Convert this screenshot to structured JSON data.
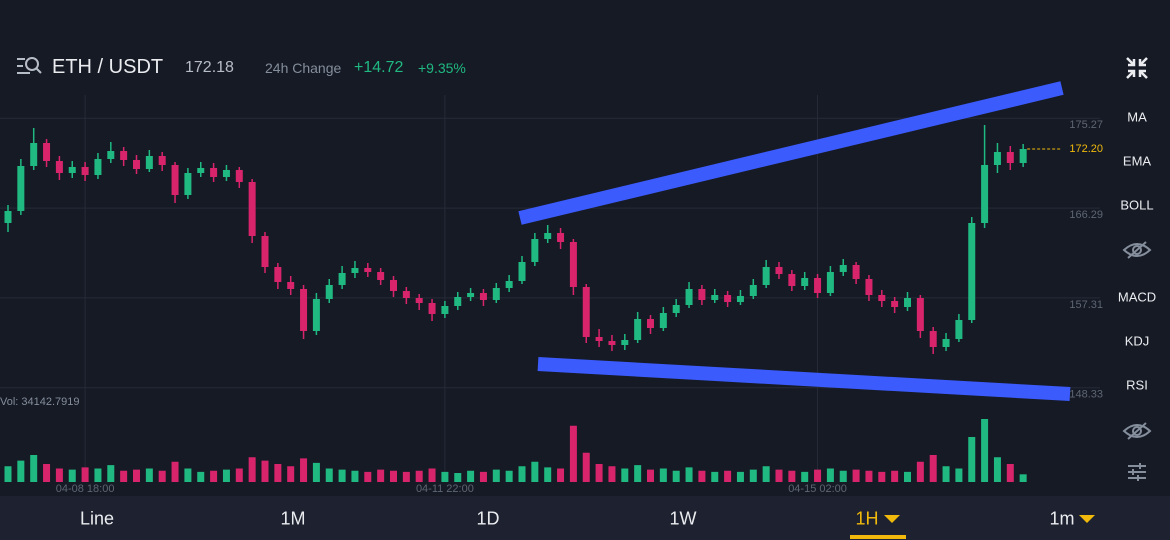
{
  "header": {
    "pair": "ETH / USDT",
    "price": "172.18",
    "change_label": "24h Change",
    "change": "+14.72",
    "change_pct": "+9.35%"
  },
  "toolbar": [
    "MA",
    "EMA",
    "BOLL",
    "MACD",
    "KDJ",
    "RSI"
  ],
  "tabs": [
    "Line",
    "1M",
    "1D",
    "1W",
    "1H",
    "1m"
  ],
  "volume_label": "Vol: 34142.7919",
  "chart_data": {
    "type": "candlestick",
    "ylim": [
      147.6,
      177.6
    ],
    "yticks": [
      175.27,
      166.29,
      157.31,
      148.33
    ],
    "xticks": [
      {
        "value": 6,
        "label": "04-08 18:00"
      },
      {
        "value": 34,
        "label": "04-11 22:00"
      },
      {
        "value": 63,
        "label": "04-15 02:00"
      }
    ],
    "grid": true,
    "up_color": "#1fb981",
    "down_color": "#d8246b",
    "last_price": {
      "value": 172.2,
      "label": "172.20"
    },
    "last_price_color": "#f0b90b",
    "vlim": [
      0,
      400000
    ],
    "open": [
      164.8,
      166.0,
      170.5,
      172.8,
      171.0,
      169.8,
      170.4,
      169.6,
      171.2,
      172.0,
      171.1,
      170.2,
      171.5,
      170.6,
      167.6,
      169.8,
      170.3,
      169.4,
      170.1,
      168.9,
      163.5,
      160.4,
      158.9,
      158.2,
      154.0,
      157.2,
      158.6,
      159.8,
      160.3,
      159.9,
      159.1,
      158.0,
      157.3,
      156.8,
      155.7,
      156.5,
      157.4,
      157.8,
      157.1,
      158.3,
      159.0,
      160.9,
      163.2,
      163.8,
      162.9,
      158.4,
      153.4,
      153.0,
      152.6,
      153.1,
      155.2,
      154.3,
      155.8,
      156.6,
      158.2,
      157.1,
      157.6,
      156.9,
      157.5,
      158.6,
      160.4,
      159.7,
      158.5,
      159.3,
      157.8,
      159.9,
      160.6,
      159.2,
      157.6,
      157.0,
      156.4,
      157.3,
      154.0,
      152.4,
      153.2,
      155.1,
      164.8,
      170.6,
      171.9,
      170.8
    ],
    "high": [
      166.6,
      171.2,
      174.3,
      173.2,
      171.5,
      171.0,
      170.9,
      171.8,
      172.9,
      172.4,
      171.6,
      172.1,
      171.9,
      170.9,
      170.3,
      170.9,
      170.8,
      170.6,
      170.4,
      169.2,
      163.9,
      160.8,
      159.5,
      158.6,
      157.8,
      159.2,
      160.5,
      161.0,
      160.8,
      160.3,
      159.5,
      158.4,
      157.7,
      157.2,
      157.0,
      157.9,
      158.3,
      158.2,
      158.8,
      159.6,
      161.5,
      163.8,
      164.6,
      164.3,
      163.2,
      158.7,
      154.2,
      153.6,
      153.7,
      155.9,
      155.6,
      156.4,
      157.2,
      158.9,
      158.6,
      158.2,
      158.0,
      158.1,
      159.2,
      161.1,
      160.9,
      160.1,
      159.9,
      159.7,
      160.5,
      161.2,
      160.9,
      159.6,
      158.1,
      157.4,
      157.9,
      157.6,
      154.4,
      153.8,
      155.7,
      165.4,
      174.6,
      172.8,
      172.5,
      172.7
    ],
    "low": [
      163.9,
      165.6,
      170.1,
      170.4,
      169.1,
      169.3,
      169.0,
      169.2,
      170.8,
      170.5,
      169.7,
      169.9,
      170.0,
      166.8,
      167.2,
      169.4,
      168.9,
      169.0,
      168.3,
      162.8,
      159.8,
      158.2,
      157.6,
      153.2,
      153.6,
      156.8,
      158.2,
      159.3,
      159.4,
      158.6,
      157.4,
      156.7,
      156.1,
      155.0,
      155.3,
      156.1,
      157.0,
      156.5,
      156.8,
      157.9,
      158.7,
      160.5,
      162.8,
      162.2,
      157.6,
      152.8,
      152.4,
      152.0,
      152.1,
      152.8,
      153.7,
      154.0,
      155.4,
      156.3,
      156.6,
      156.8,
      156.4,
      156.6,
      157.2,
      158.3,
      159.2,
      158.0,
      158.1,
      157.3,
      157.5,
      159.5,
      158.7,
      157.0,
      156.4,
      155.8,
      156.0,
      153.3,
      151.7,
      152.0,
      152.9,
      154.8,
      164.3,
      169.8,
      170.1,
      170.4
    ],
    "close": [
      166.0,
      170.5,
      172.8,
      171.0,
      169.8,
      170.4,
      169.6,
      171.2,
      172.0,
      171.1,
      170.2,
      171.5,
      170.6,
      167.6,
      169.8,
      170.3,
      169.4,
      170.1,
      168.9,
      163.5,
      160.4,
      158.9,
      158.2,
      154.0,
      157.2,
      158.6,
      159.8,
      160.3,
      159.9,
      159.1,
      158.0,
      157.3,
      156.8,
      155.7,
      156.5,
      157.4,
      157.8,
      157.1,
      158.3,
      159.0,
      160.9,
      163.2,
      163.8,
      162.9,
      158.4,
      153.4,
      153.0,
      152.6,
      153.1,
      155.2,
      154.3,
      155.8,
      156.6,
      158.2,
      157.1,
      157.6,
      156.9,
      157.5,
      158.6,
      160.4,
      159.7,
      158.5,
      159.3,
      157.8,
      159.9,
      160.6,
      159.2,
      157.6,
      157.0,
      156.4,
      157.3,
      154.0,
      152.4,
      153.2,
      155.1,
      164.8,
      170.6,
      171.9,
      170.8,
      172.2
    ],
    "volume": [
      70000,
      95000,
      120000,
      80000,
      60000,
      55000,
      65000,
      60000,
      75000,
      50000,
      55000,
      60000,
      50000,
      90000,
      60000,
      45000,
      50000,
      55000,
      60000,
      110000,
      95000,
      80000,
      70000,
      105000,
      85000,
      60000,
      55000,
      50000,
      45000,
      55000,
      50000,
      45000,
      50000,
      60000,
      45000,
      40000,
      50000,
      45000,
      55000,
      50000,
      70000,
      90000,
      65000,
      60000,
      250000,
      130000,
      80000,
      70000,
      60000,
      75000,
      55000,
      60000,
      50000,
      65000,
      50000,
      45000,
      50000,
      45000,
      55000,
      70000,
      55000,
      50000,
      45000,
      55000,
      60000,
      50000,
      55000,
      50000,
      45000,
      50000,
      45000,
      90000,
      120000,
      70000,
      60000,
      200000,
      280000,
      110000,
      80000,
      34142.7919
    ]
  }
}
